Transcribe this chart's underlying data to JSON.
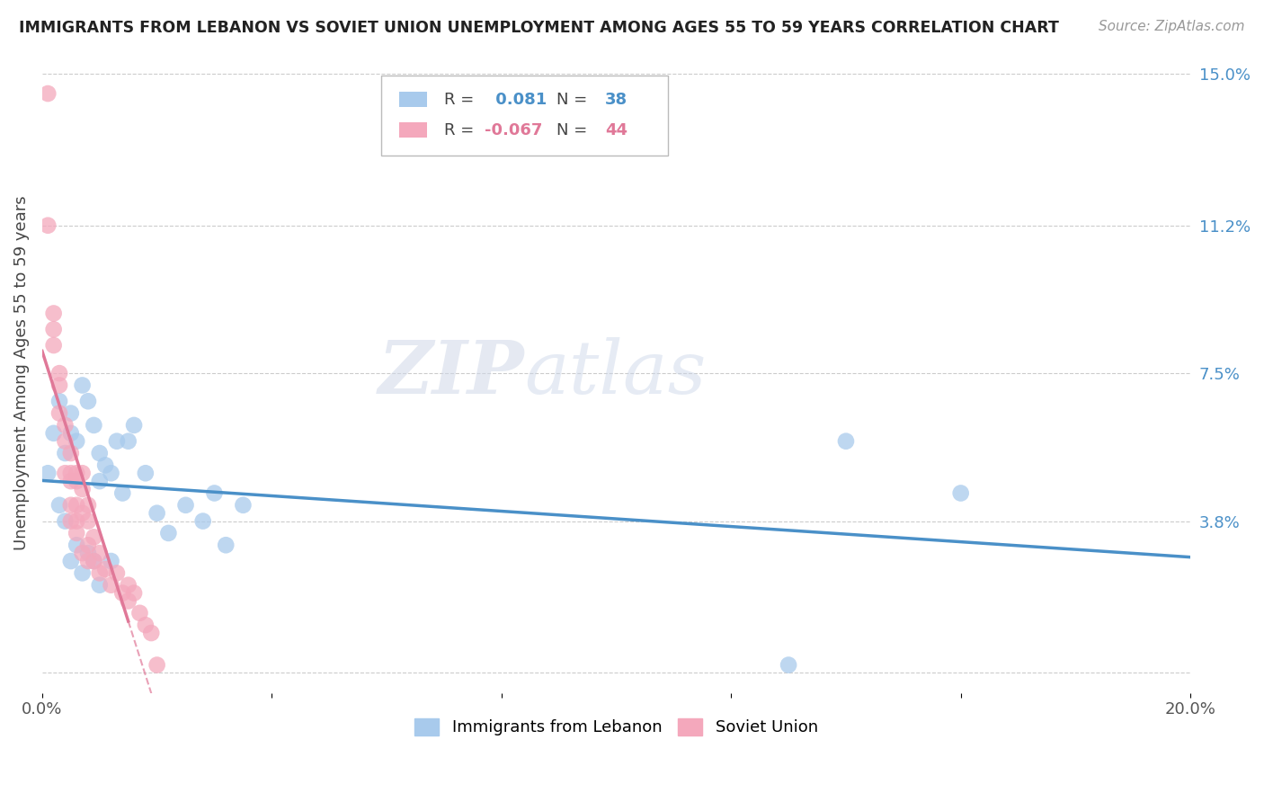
{
  "title": "IMMIGRANTS FROM LEBANON VS SOVIET UNION UNEMPLOYMENT AMONG AGES 55 TO 59 YEARS CORRELATION CHART",
  "source": "Source: ZipAtlas.com",
  "ylabel": "Unemployment Among Ages 55 to 59 years",
  "xlim": [
    0.0,
    0.2
  ],
  "ylim": [
    -0.005,
    0.155
  ],
  "yticks_right": [
    0.0,
    0.038,
    0.075,
    0.112,
    0.15
  ],
  "ytick_right_labels": [
    "",
    "3.8%",
    "7.5%",
    "11.2%",
    "15.0%"
  ],
  "legend_blue_r": "0.081",
  "legend_blue_n": "38",
  "legend_pink_r": "-0.067",
  "legend_pink_n": "44",
  "blue_color": "#A8CAEC",
  "pink_color": "#F4A8BC",
  "blue_line_color": "#4A90C8",
  "pink_line_color": "#E07898",
  "watermark_zip": "ZIP",
  "watermark_atlas": "atlas",
  "lebanon_x": [
    0.001,
    0.002,
    0.003,
    0.004,
    0.005,
    0.005,
    0.006,
    0.007,
    0.008,
    0.009,
    0.01,
    0.01,
    0.011,
    0.012,
    0.013,
    0.014,
    0.015,
    0.016,
    0.018,
    0.02,
    0.022,
    0.025,
    0.028,
    0.03,
    0.032,
    0.035,
    0.003,
    0.004,
    0.005,
    0.006,
    0.007,
    0.008,
    0.009,
    0.01,
    0.012,
    0.14,
    0.16,
    0.13
  ],
  "lebanon_y": [
    0.05,
    0.06,
    0.068,
    0.055,
    0.065,
    0.06,
    0.058,
    0.072,
    0.068,
    0.062,
    0.048,
    0.055,
    0.052,
    0.05,
    0.058,
    0.045,
    0.058,
    0.062,
    0.05,
    0.04,
    0.035,
    0.042,
    0.038,
    0.045,
    0.032,
    0.042,
    0.042,
    0.038,
    0.028,
    0.032,
    0.025,
    0.03,
    0.028,
    0.022,
    0.028,
    0.058,
    0.045,
    0.002
  ],
  "soviet_x": [
    0.001,
    0.001,
    0.002,
    0.002,
    0.002,
    0.003,
    0.003,
    0.003,
    0.004,
    0.004,
    0.004,
    0.005,
    0.005,
    0.005,
    0.005,
    0.006,
    0.006,
    0.006,
    0.006,
    0.007,
    0.007,
    0.007,
    0.008,
    0.008,
    0.008,
    0.009,
    0.009,
    0.01,
    0.01,
    0.011,
    0.012,
    0.013,
    0.014,
    0.015,
    0.015,
    0.016,
    0.017,
    0.018,
    0.019,
    0.02,
    0.005,
    0.006,
    0.007,
    0.008
  ],
  "soviet_y": [
    0.145,
    0.112,
    0.09,
    0.086,
    0.082,
    0.075,
    0.072,
    0.065,
    0.062,
    0.058,
    0.05,
    0.055,
    0.05,
    0.048,
    0.042,
    0.05,
    0.048,
    0.042,
    0.038,
    0.05,
    0.046,
    0.04,
    0.042,
    0.038,
    0.032,
    0.034,
    0.028,
    0.03,
    0.025,
    0.026,
    0.022,
    0.025,
    0.02,
    0.018,
    0.022,
    0.02,
    0.015,
    0.012,
    0.01,
    0.002,
    0.038,
    0.035,
    0.03,
    0.028
  ]
}
